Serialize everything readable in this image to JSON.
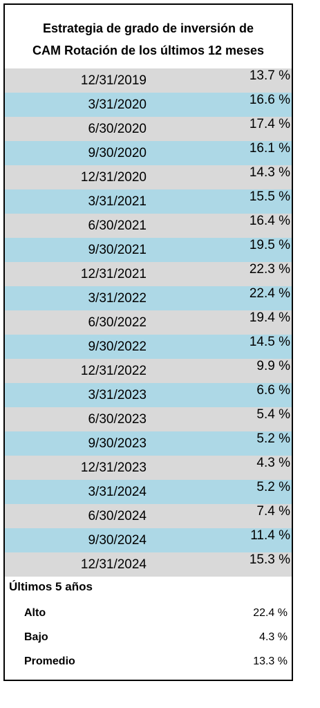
{
  "title": {
    "line1": "Estrategia de grado de inversión de",
    "line2": "CAM Rotación de los últimos 12 meses"
  },
  "colors": {
    "row_gray": "#d9d9d9",
    "row_blue": "#add8e6",
    "border": "#000000"
  },
  "rows": [
    {
      "date": "12/31/2019",
      "value": "13.7 %"
    },
    {
      "date": "3/31/2020",
      "value": "16.6 %"
    },
    {
      "date": "6/30/2020",
      "value": "17.4 %"
    },
    {
      "date": "9/30/2020",
      "value": "16.1 %"
    },
    {
      "date": "12/31/2020",
      "value": "14.3 %"
    },
    {
      "date": "3/31/2021",
      "value": "15.5 %"
    },
    {
      "date": "6/30/2021",
      "value": "16.4 %"
    },
    {
      "date": "9/30/2021",
      "value": "19.5 %"
    },
    {
      "date": "12/31/2021",
      "value": "22.3 %"
    },
    {
      "date": "3/31/2022",
      "value": "22.4 %"
    },
    {
      "date": "6/30/2022",
      "value": "19.4 %"
    },
    {
      "date": "9/30/2022",
      "value": "14.5 %"
    },
    {
      "date": "12/31/2022",
      "value": "9.9 %"
    },
    {
      "date": "3/31/2023",
      "value": "6.6 %"
    },
    {
      "date": "6/30/2023",
      "value": "5.4 %"
    },
    {
      "date": "9/30/2023",
      "value": "5.2 %"
    },
    {
      "date": "12/31/2023",
      "value": "4.3 %"
    },
    {
      "date": "3/31/2024",
      "value": "5.2 %"
    },
    {
      "date": "6/30/2024",
      "value": "7.4 %"
    },
    {
      "date": "9/30/2024",
      "value": "11.4 %"
    },
    {
      "date": "12/31/2024",
      "value": "15.3 %"
    }
  ],
  "summary": {
    "heading": "Últimos 5 años",
    "high_label": "Alto",
    "high_value": "22.4 %",
    "low_label": "Bajo",
    "low_value": "4.3 %",
    "avg_label": "Promedio",
    "avg_value": "13.3 %"
  }
}
